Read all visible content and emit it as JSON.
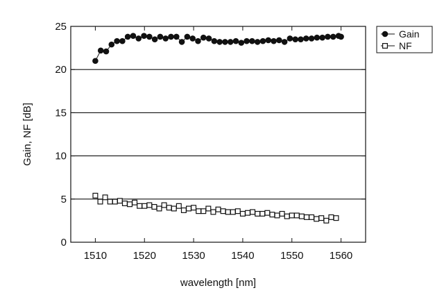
{
  "chart_data": {
    "type": "line",
    "xlabel": "wavelength [nm]",
    "ylabel": "Gain, NF [dB]",
    "xlim": [
      1505,
      1565
    ],
    "ylim": [
      0,
      25
    ],
    "xticks": [
      1510,
      1520,
      1530,
      1540,
      1550,
      1560
    ],
    "yticks": [
      0,
      5,
      10,
      15,
      20,
      25
    ],
    "grid": "horizontal",
    "legend_position": "outside-top-right",
    "series": [
      {
        "name": "Gain",
        "marker": "filled-circle",
        "color": "#111111",
        "points": [
          [
            1510.0,
            21.0
          ],
          [
            1511.1,
            22.2
          ],
          [
            1512.2,
            22.1
          ],
          [
            1513.3,
            22.9
          ],
          [
            1514.4,
            23.3
          ],
          [
            1515.5,
            23.3
          ],
          [
            1516.6,
            23.8
          ],
          [
            1517.7,
            23.9
          ],
          [
            1518.8,
            23.6
          ],
          [
            1519.9,
            23.9
          ],
          [
            1521.0,
            23.8
          ],
          [
            1522.1,
            23.5
          ],
          [
            1523.2,
            23.8
          ],
          [
            1524.3,
            23.6
          ],
          [
            1525.4,
            23.8
          ],
          [
            1526.5,
            23.8
          ],
          [
            1527.6,
            23.2
          ],
          [
            1528.7,
            23.8
          ],
          [
            1529.8,
            23.6
          ],
          [
            1530.9,
            23.3
          ],
          [
            1532.0,
            23.7
          ],
          [
            1533.1,
            23.6
          ],
          [
            1534.2,
            23.3
          ],
          [
            1535.3,
            23.2
          ],
          [
            1536.4,
            23.2
          ],
          [
            1537.5,
            23.2
          ],
          [
            1538.6,
            23.3
          ],
          [
            1539.7,
            23.1
          ],
          [
            1540.8,
            23.3
          ],
          [
            1541.9,
            23.3
          ],
          [
            1543.0,
            23.2
          ],
          [
            1544.1,
            23.3
          ],
          [
            1545.2,
            23.4
          ],
          [
            1546.3,
            23.3
          ],
          [
            1547.4,
            23.4
          ],
          [
            1548.5,
            23.2
          ],
          [
            1549.6,
            23.6
          ],
          [
            1550.7,
            23.5
          ],
          [
            1551.8,
            23.5
          ],
          [
            1552.9,
            23.6
          ],
          [
            1554.0,
            23.6
          ],
          [
            1555.1,
            23.7
          ],
          [
            1556.2,
            23.7
          ],
          [
            1557.3,
            23.8
          ],
          [
            1558.4,
            23.8
          ],
          [
            1559.5,
            23.9
          ],
          [
            1560.0,
            23.8
          ]
        ]
      },
      {
        "name": "NF",
        "marker": "open-square",
        "color": "#111111",
        "points": [
          [
            1510.0,
            5.4
          ],
          [
            1511.0,
            4.7
          ],
          [
            1512.0,
            5.2
          ],
          [
            1513.0,
            4.7
          ],
          [
            1514.0,
            4.7
          ],
          [
            1515.0,
            4.8
          ],
          [
            1516.0,
            4.5
          ],
          [
            1517.0,
            4.4
          ],
          [
            1518.0,
            4.6
          ],
          [
            1519.0,
            4.2
          ],
          [
            1520.0,
            4.2
          ],
          [
            1521.0,
            4.3
          ],
          [
            1522.0,
            4.1
          ],
          [
            1523.0,
            3.9
          ],
          [
            1524.0,
            4.3
          ],
          [
            1525.0,
            4.0
          ],
          [
            1526.0,
            3.9
          ],
          [
            1527.0,
            4.2
          ],
          [
            1528.0,
            3.7
          ],
          [
            1529.0,
            3.9
          ],
          [
            1530.0,
            4.0
          ],
          [
            1531.0,
            3.6
          ],
          [
            1532.0,
            3.6
          ],
          [
            1533.0,
            3.9
          ],
          [
            1534.0,
            3.5
          ],
          [
            1535.0,
            3.8
          ],
          [
            1536.0,
            3.6
          ],
          [
            1537.0,
            3.5
          ],
          [
            1538.0,
            3.5
          ],
          [
            1539.0,
            3.6
          ],
          [
            1540.0,
            3.3
          ],
          [
            1541.0,
            3.4
          ],
          [
            1542.0,
            3.5
          ],
          [
            1543.0,
            3.3
          ],
          [
            1544.0,
            3.3
          ],
          [
            1545.0,
            3.4
          ],
          [
            1546.0,
            3.2
          ],
          [
            1547.0,
            3.1
          ],
          [
            1548.0,
            3.3
          ],
          [
            1549.0,
            3.0
          ],
          [
            1550.0,
            3.1
          ],
          [
            1551.0,
            3.1
          ],
          [
            1552.0,
            3.0
          ],
          [
            1553.0,
            2.9
          ],
          [
            1554.0,
            2.9
          ],
          [
            1555.0,
            2.7
          ],
          [
            1556.0,
            2.8
          ],
          [
            1557.0,
            2.5
          ],
          [
            1558.0,
            2.9
          ],
          [
            1559.0,
            2.8
          ]
        ]
      }
    ]
  }
}
